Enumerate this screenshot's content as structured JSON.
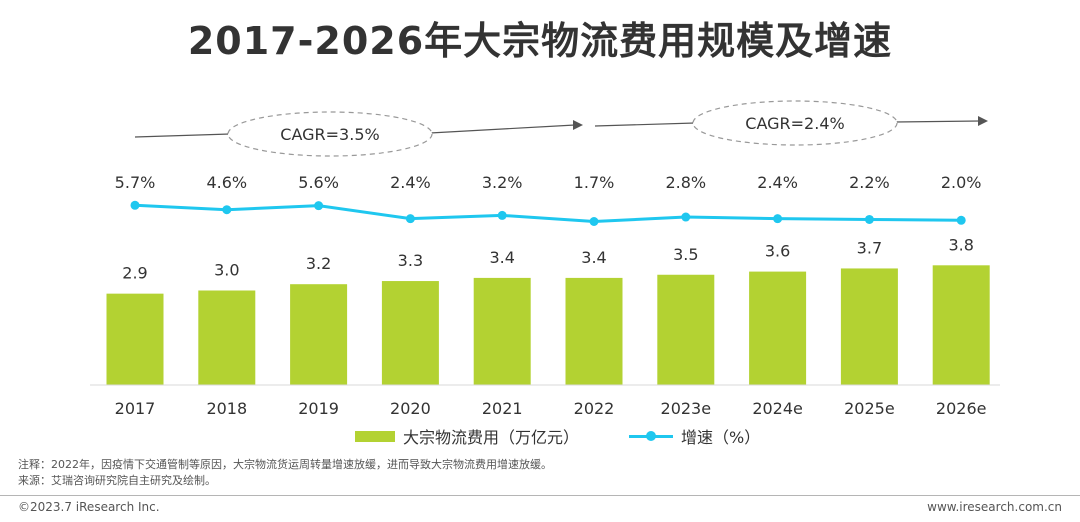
{
  "title": "2017-2026年大宗物流费用规模及增速",
  "chart_data": {
    "type": "bar",
    "categories": [
      "2017",
      "2018",
      "2019",
      "2020",
      "2021",
      "2022",
      "2023e",
      "2024e",
      "2025e",
      "2026e"
    ],
    "series": [
      {
        "name": "大宗物流费用（万亿元）",
        "type": "bar",
        "values": [
          2.9,
          3.0,
          3.2,
          3.3,
          3.4,
          3.4,
          3.5,
          3.6,
          3.7,
          3.8
        ],
        "labels": [
          "2.9",
          "3.0",
          "3.2",
          "3.3",
          "3.4",
          "3.4",
          "3.5",
          "3.6",
          "3.7",
          "3.8"
        ],
        "color": "#b3d232"
      },
      {
        "name": "增速（%）",
        "type": "line",
        "values": [
          5.7,
          4.6,
          5.6,
          2.4,
          3.2,
          1.7,
          2.8,
          2.4,
          2.2,
          2.0
        ],
        "labels": [
          "5.7%",
          "4.6%",
          "5.6%",
          "2.4%",
          "3.2%",
          "1.7%",
          "2.8%",
          "2.4%",
          "2.2%",
          "2.0%"
        ],
        "color": "#1fc7ef"
      }
    ],
    "annotations": [
      {
        "label": "CAGR=3.5%",
        "from": "2017",
        "to": "2022"
      },
      {
        "label": "CAGR=2.4%",
        "from": "2022",
        "to": "2026e"
      }
    ]
  },
  "legend": {
    "bar_label": "大宗物流费用（万亿元）",
    "line_label": "增速（%）",
    "bar_color": "#b3d232",
    "line_color": "#1fc7ef"
  },
  "notes": {
    "note1": "注释：2022年，因疫情下交通管制等原因，大宗物流货运周转量增速放缓，进而导致大宗物流费用增速放缓。",
    "note2": "来源：艾瑞咨询研究院自主研究及绘制。"
  },
  "footer": {
    "copyright": "©2023.7 iResearch Inc.",
    "website": "www.iresearch.com.cn"
  }
}
